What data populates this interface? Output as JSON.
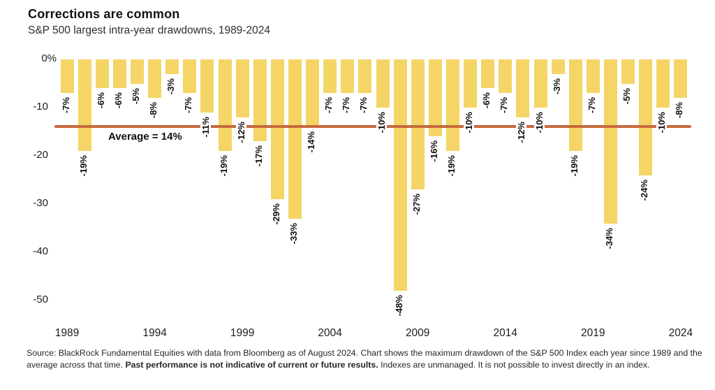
{
  "header": {
    "title": "Corrections are common",
    "subtitle": "S&P 500 largest intra-year drawdowns, 1989-2024"
  },
  "chart_data": {
    "type": "bar",
    "title": "Corrections are common",
    "subtitle": "S&P 500 largest intra-year drawdowns, 1989-2024",
    "x": [
      1989,
      1990,
      1991,
      1992,
      1993,
      1994,
      1995,
      1996,
      1997,
      1998,
      1999,
      2000,
      2001,
      2002,
      2003,
      2004,
      2005,
      2006,
      2007,
      2008,
      2009,
      2010,
      2011,
      2012,
      2013,
      2014,
      2015,
      2016,
      2017,
      2018,
      2019,
      2020,
      2021,
      2022,
      2023,
      2024
    ],
    "values": [
      -7,
      -19,
      -6,
      -6,
      -5,
      -8,
      -3,
      -7,
      -11,
      -19,
      -12,
      -17,
      -29,
      -33,
      -14,
      -7,
      -7,
      -7,
      -10,
      -48,
      -27,
      -16,
      -19,
      -10,
      -6,
      -7,
      -12,
      -10,
      -3,
      -19,
      -7,
      -34,
      -5,
      -24,
      -10,
      -8
    ],
    "value_label_format": "percent",
    "xticks": [
      1989,
      1994,
      1999,
      2004,
      2009,
      2014,
      2019,
      2024
    ],
    "yticks": [
      {
        "value": 0,
        "label": "0%"
      },
      {
        "value": -10,
        "label": "-10"
      },
      {
        "value": -20,
        "label": "-20"
      },
      {
        "value": -30,
        "label": "-30"
      },
      {
        "value": -40,
        "label": "-40"
      },
      {
        "value": -50,
        "label": "-50"
      }
    ],
    "ylim": [
      -50,
      0
    ],
    "grid": false,
    "legend": "none",
    "bar_color": "#F4D565",
    "average_line": {
      "value": -14,
      "label": "Average = 14%",
      "color": "#C7693C"
    }
  },
  "footer": {
    "text_before_bold": "Source: BlackRock Fundamental Equities with data from Bloomberg as of August 2024. Chart shows the maximum drawdown of the S&P 500 Index each year since 1989 and the average across that time. ",
    "bold_text": "Past performance is not indicative of current or future results.",
    "text_after_bold": " Indexes are unmanaged. It is not possible to invest directly in an index."
  }
}
